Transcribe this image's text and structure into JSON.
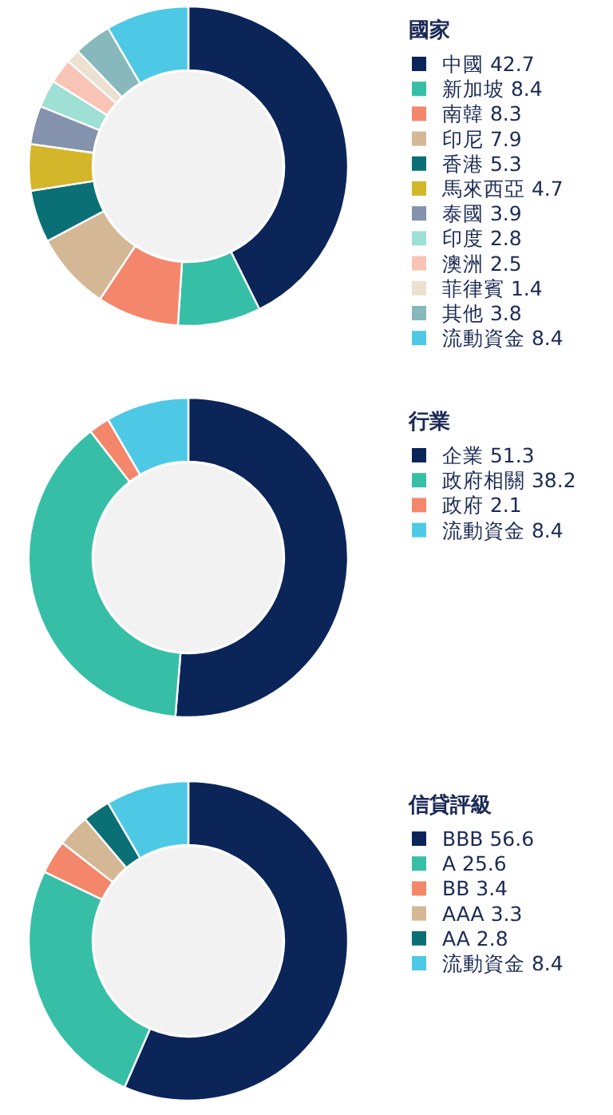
{
  "chart_data": [
    {
      "type": "donut",
      "legend_title": "國家",
      "legend": "right",
      "categories": [
        "中國 42.7",
        "新加坡 8.4",
        "南韓 8.3",
        "印尼 7.9",
        "香港 5.3",
        "馬來西亞 4.7",
        "泰國 3.9",
        "印度 2.8",
        "澳洲 2.5",
        "菲律賓 1.4",
        "其他 3.8",
        "流動資金 8.4"
      ],
      "values": [
        42.7,
        8.4,
        8.3,
        7.9,
        5.3,
        4.7,
        3.9,
        2.8,
        2.5,
        1.4,
        3.8,
        8.4
      ],
      "colors": [
        "#0b2559",
        "#36bfa6",
        "#f4876b",
        "#d4b896",
        "#0a7075",
        "#d4b62a",
        "#8592ad",
        "#9ee0d4",
        "#f8c4b6",
        "#ece0d0",
        "#87b8bc",
        "#4dc9e6"
      ]
    },
    {
      "type": "donut",
      "legend_title": "行業",
      "legend": "right",
      "categories": [
        "企業 51.3",
        "政府相關 38.2",
        "政府 2.1",
        "流動資金 8.4"
      ],
      "values": [
        51.3,
        38.2,
        2.1,
        8.4
      ],
      "colors": [
        "#0b2559",
        "#36bfa6",
        "#f4876b",
        "#4dc9e6"
      ]
    },
    {
      "type": "donut",
      "legend_title": "信貸評級",
      "legend": "right",
      "categories": [
        "BBB 56.6",
        "A 25.6",
        "BB 3.4",
        "AAA 3.3",
        "AA 2.8",
        "流動資金 8.4"
      ],
      "values": [
        56.6,
        25.6,
        3.4,
        3.3,
        2.8,
        8.4
      ],
      "colors": [
        "#0b2559",
        "#36bfa6",
        "#f4876b",
        "#d4b896",
        "#0a7075",
        "#4dc9e6"
      ]
    }
  ]
}
